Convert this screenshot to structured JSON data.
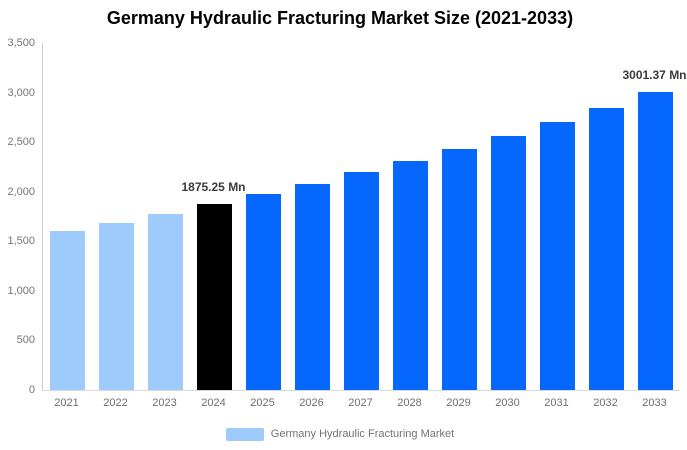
{
  "chart_data": {
    "type": "bar",
    "title": "Germany Hydraulic Fracturing Market Size (2021-2033)",
    "categories": [
      "2021",
      "2022",
      "2023",
      "2024",
      "2025",
      "2026",
      "2027",
      "2028",
      "2029",
      "2030",
      "2031",
      "2032",
      "2033"
    ],
    "values": [
      1603,
      1689,
      1780,
      1875.25,
      1976,
      2082,
      2194,
      2311,
      2435,
      2566,
      2704,
      2849,
      3001.37
    ],
    "bar_colors": [
      "#9ECBFB",
      "#9ECBFB",
      "#9ECBFB",
      "#000000",
      "#0667FD",
      "#0667FD",
      "#0667FD",
      "#0667FD",
      "#0667FD",
      "#0667FD",
      "#0667FD",
      "#0667FD",
      "#0667FD"
    ],
    "palette": {
      "historical": "#9ECBFB",
      "highlight": "#000000",
      "forecast": "#0667FD"
    },
    "xlabel": "",
    "ylabel": "",
    "ylim": [
      0,
      3500
    ],
    "yticks": [
      0,
      500,
      1000,
      1500,
      2000,
      2500,
      3000,
      3500
    ],
    "ytick_labels": [
      "0",
      "500",
      "1,000",
      "1,500",
      "2,000",
      "2,500",
      "3,000",
      "3,500"
    ],
    "grid": false,
    "data_labels": [
      {
        "index": 3,
        "text": "1875.25 Mn"
      },
      {
        "index": 12,
        "text": "3001.37 Mn"
      }
    ],
    "legend": {
      "label": "Germany Hydraulic Fracturing Market",
      "swatch_color": "#9ECBFB",
      "position": "bottom"
    }
  }
}
